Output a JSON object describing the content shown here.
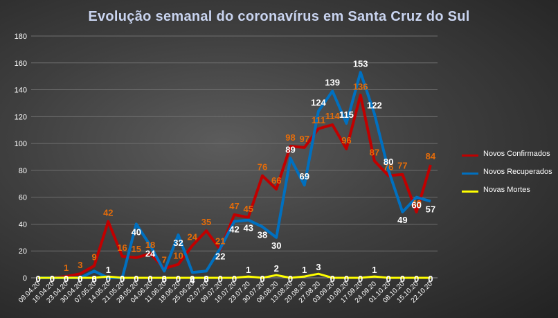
{
  "chart_data": {
    "type": "line",
    "title": "Evolução semanal do coronavírus  em Santa Cruz do Sul",
    "xlabel": "",
    "ylabel": "",
    "ylim": [
      0,
      180
    ],
    "yticks": [
      0,
      20,
      40,
      60,
      80,
      100,
      120,
      140,
      160,
      180
    ],
    "grid": true,
    "legend_position": "right",
    "categories": [
      "09.04.20",
      "16.04.20",
      "23.04.20",
      "30.04.20",
      "07.05.20",
      "14.05.20",
      "21.05.20",
      "28.05.20",
      "04.06.20",
      "11.06.20",
      "18.06.20",
      "25.06.20",
      "02.07.20",
      "09.07.20",
      "16.07.20",
      "23.07.20",
      "30.07.20",
      "06.08.20",
      "13.08.20",
      "20.08.20",
      "27.08.20",
      "03.09.20",
      "10.09.20",
      "17.09.20",
      "24.09.20",
      "01.10.20",
      "08.10.20",
      "15.10.20",
      "22.10.20"
    ],
    "series": [
      {
        "name": "Novos Confirmados",
        "color": "#c00000",
        "label_color": "#e46c0a",
        "values": [
          0,
          0,
          1,
          3,
          9,
          42,
          16,
          15,
          18,
          7,
          10,
          24,
          35,
          21,
          47,
          45,
          76,
          66,
          98,
          97,
          111,
          114,
          96,
          136,
          87,
          76,
          77,
          49,
          84
        ]
      },
      {
        "name": "Novos Recuperados",
        "color": "#0070c0",
        "label_color": "#ffffff",
        "values": [
          0,
          0,
          0,
          0,
          5,
          0,
          0,
          40,
          24,
          5,
          32,
          4,
          5,
          22,
          42,
          43,
          38,
          30,
          89,
          69,
          124,
          139,
          115,
          153,
          122,
          80,
          49,
          60,
          57
        ]
      },
      {
        "name": "Novas Mortes",
        "color": "#ffff00",
        "label_color": "#ffffff",
        "values": [
          0,
          0,
          0,
          0,
          0,
          1,
          0,
          0,
          0,
          0,
          0,
          0,
          0,
          0,
          0,
          1,
          0,
          2,
          0,
          1,
          3,
          0,
          0,
          0,
          1,
          0,
          0,
          0,
          0
        ]
      }
    ]
  }
}
